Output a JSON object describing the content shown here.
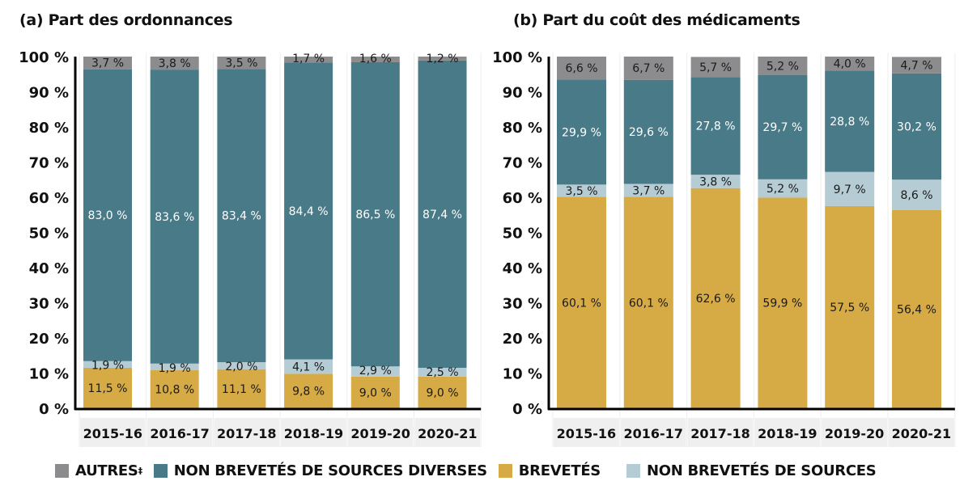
{
  "colors": {
    "autres": "#8c8c8e",
    "non_brevetes_diverses": "#497a87",
    "brevetes": "#d6aa45",
    "non_brevetes_sources": "#b6ccd4",
    "category_bg": "#efefef",
    "axis": "#000000"
  },
  "legend": [
    {
      "key": "autres",
      "label": "AUTRES",
      "sup": "‡"
    },
    {
      "key": "non_brevetes_diverses",
      "label": "NON BREVETÉS DE SOURCES DIVERSES",
      "sup": ""
    },
    {
      "key": "brevetes",
      "label": "BREVETÉS",
      "sup": ""
    },
    {
      "key": "non_brevetes_sources",
      "label": "NON BREVETÉS DE SOURCES",
      "sup": ""
    }
  ],
  "chart_data": [
    {
      "type": "bar",
      "stacked": true,
      "title": "(a) Part des ordonnances",
      "categories": [
        "2015-16",
        "2016-17",
        "2017-18",
        "2018-19",
        "2019-20",
        "2020-21"
      ],
      "ylim": [
        0,
        100
      ],
      "yticks": [
        "0 %",
        "10 %",
        "20 %",
        "30 %",
        "40 %",
        "50 %",
        "60 %",
        "70 %",
        "80 %",
        "90 %",
        "100 %"
      ],
      "series": [
        {
          "name": "BREVETÉS",
          "key": "brevetes",
          "values": [
            11.5,
            10.8,
            11.1,
            9.8,
            9.0,
            9.0
          ],
          "labels": [
            "11,5 %",
            "10,8 %",
            "11,1 %",
            "9,8 %",
            "9,0 %",
            "9,0 %"
          ]
        },
        {
          "name": "NON BREVETÉS DE SOURCES",
          "key": "non_brevetes_sources",
          "values": [
            1.9,
            1.9,
            2.0,
            4.1,
            2.9,
            2.5
          ],
          "labels": [
            "1,9 %",
            "1,9 %",
            "2,0 %",
            "4,1 %",
            "2,9 %",
            "2,5 %"
          ]
        },
        {
          "name": "NON BREVETÉS DE SOURCES DIVERSES",
          "key": "non_brevetes_diverses",
          "values": [
            83.0,
            83.6,
            83.4,
            84.4,
            86.5,
            87.4
          ],
          "labels": [
            "83,0 %",
            "83,6 %",
            "83,4 %",
            "84,4 %",
            "86,5 %",
            "87,4 %"
          ]
        },
        {
          "name": "AUTRES‡",
          "key": "autres",
          "values": [
            3.7,
            3.8,
            3.5,
            1.7,
            1.6,
            1.2
          ],
          "labels": [
            "3,7 %",
            "3,8 %",
            "3,5 %",
            "1,7 %",
            "1,6 %",
            "1,2 %"
          ]
        }
      ],
      "legend_position": "bottom"
    },
    {
      "type": "bar",
      "stacked": true,
      "title": "(b) Part du coût des médicaments",
      "categories": [
        "2015-16",
        "2016-17",
        "2017-18",
        "2018-19",
        "2019-20",
        "2020-21"
      ],
      "ylim": [
        0,
        100
      ],
      "yticks": [
        "0 %",
        "10 %",
        "20 %",
        "30 %",
        "40 %",
        "50 %",
        "60 %",
        "70 %",
        "80 %",
        "90 %",
        "100 %"
      ],
      "series": [
        {
          "name": "BREVETÉS",
          "key": "brevetes",
          "values": [
            60.1,
            60.1,
            62.6,
            59.9,
            57.5,
            56.4
          ],
          "labels": [
            "60,1 %",
            "60,1 %",
            "62,6 %",
            "59,9 %",
            "57,5 %",
            "56,4 %"
          ]
        },
        {
          "name": "NON BREVETÉS DE SOURCES",
          "key": "non_brevetes_sources",
          "values": [
            3.5,
            3.7,
            3.8,
            5.2,
            9.7,
            8.6
          ],
          "labels": [
            "3,5 %",
            "3,7 %",
            "3,8 %",
            "5,2 %",
            "9,7 %",
            "8,6 %"
          ]
        },
        {
          "name": "NON BREVETÉS DE SOURCES DIVERSES",
          "key": "non_brevetes_diverses",
          "values": [
            29.9,
            29.6,
            27.8,
            29.7,
            28.8,
            30.2
          ],
          "labels": [
            "29,9 %",
            "29,6 %",
            "27,8 %",
            "29,7 %",
            "28,8 %",
            "30,2 %"
          ]
        },
        {
          "name": "AUTRES‡",
          "key": "autres",
          "values": [
            6.6,
            6.7,
            5.7,
            5.2,
            4.0,
            4.7
          ],
          "labels": [
            "6,6 %",
            "6,7 %",
            "5,7 %",
            "5,2 %",
            "4,0 %",
            "4,7 %"
          ]
        }
      ],
      "legend_position": "bottom"
    }
  ]
}
